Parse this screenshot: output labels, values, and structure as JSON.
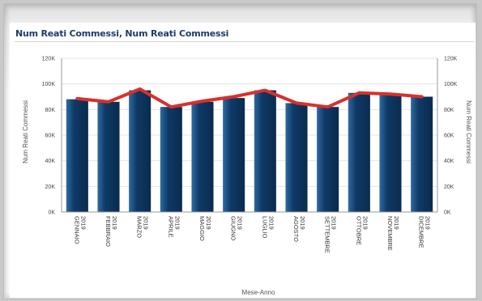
{
  "page": {
    "title": "Num Reati Commessi, Num Reati Commessi"
  },
  "colors": {
    "bar": "#0f3a66",
    "bar_highlight": "#2f6aa3",
    "line": "#d9302a",
    "grid": "#e4e4e4",
    "axis": "#999999"
  },
  "chart_data": {
    "type": "bar",
    "title": "Num Reati Commessi, Num Reati Commessi",
    "xlabel": "Mese-Anno",
    "ylabel": "Num Reati Commessi",
    "y2label": "Num Reati Commessi",
    "ylim": [
      0,
      120000
    ],
    "y_ticks": [
      "0K",
      "20K",
      "40K",
      "60K",
      "80K",
      "100K",
      "120K"
    ],
    "grid": true,
    "categories": [
      [
        "GENNAIO",
        "2019"
      ],
      [
        "FEBBRAIO",
        "2019"
      ],
      [
        "MARZO",
        "2019"
      ],
      [
        "APRILE",
        "2019"
      ],
      [
        "MAGGIO",
        "2019"
      ],
      [
        "GIUGNO",
        "2019"
      ],
      [
        "LUGLIO",
        "2019"
      ],
      [
        "AGOSTO",
        "2019"
      ],
      [
        "SETTEMBRE",
        "2019"
      ],
      [
        "OTTOBRE",
        "2019"
      ],
      [
        "NOVEMBRE",
        "2019"
      ],
      [
        "DICEMBRE",
        "2019"
      ]
    ],
    "series": [
      {
        "type": "bar",
        "values": [
          88000,
          86000,
          95000,
          82000,
          86000,
          89000,
          95000,
          85000,
          82000,
          93000,
          92000,
          90000
        ]
      },
      {
        "type": "line",
        "values": [
          88500,
          86000,
          96000,
          82000,
          86500,
          90000,
          95000,
          85000,
          82000,
          93000,
          92000,
          90000
        ]
      }
    ]
  }
}
